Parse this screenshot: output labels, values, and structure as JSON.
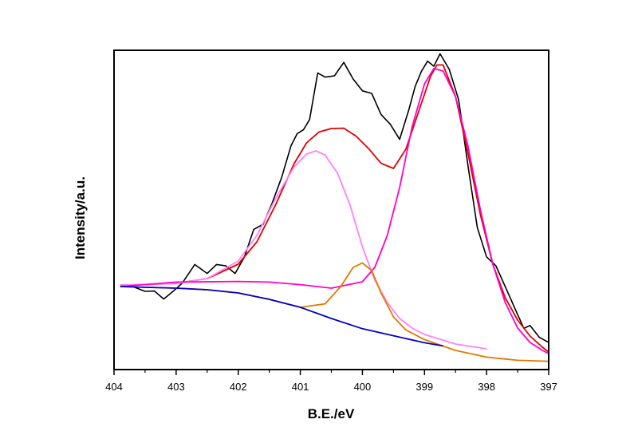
{
  "chart_data": {
    "type": "line",
    "title": "",
    "xlabel": "B.E./eV",
    "ylabel": "Intensity/a.u.",
    "xlim": [
      404,
      397
    ],
    "x_reversed": true,
    "ylim": [
      0,
      100
    ],
    "y_ticks_shown": false,
    "grid": false,
    "legend": "none",
    "x_ticks": [
      404,
      403,
      402,
      401,
      400,
      399,
      398,
      397
    ],
    "series": [
      {
        "color": "#000000",
        "style": "raw-data",
        "x": [
          403.9,
          403.7,
          403.5,
          403.35,
          403.2,
          403.05,
          402.9,
          402.7,
          402.5,
          402.35,
          402.2,
          402.05,
          401.9,
          401.75,
          401.6,
          401.45,
          401.3,
          401.15,
          401.05,
          400.95,
          400.85,
          400.72,
          400.6,
          400.45,
          400.3,
          400.15,
          400.0,
          399.85,
          399.7,
          399.55,
          399.4,
          399.25,
          399.15,
          399.05,
          398.95,
          398.85,
          398.75,
          398.6,
          398.45,
          398.3,
          398.15,
          398.0,
          397.85,
          397.7,
          397.55,
          397.4,
          397.3,
          397.15,
          397.0,
          396.9
        ],
        "y": [
          26.5,
          26,
          24.5,
          24.6,
          22.1,
          24.5,
          27.1,
          32.9,
          30.1,
          32.9,
          32.5,
          30.1,
          35.3,
          43.9,
          45.5,
          52.3,
          60.2,
          70.1,
          73.9,
          75.1,
          78.3,
          92.9,
          91.6,
          92.0,
          96.2,
          91.0,
          87.3,
          86.5,
          79.9,
          76.8,
          72.1,
          81.5,
          88.7,
          93.4,
          96.6,
          95.0,
          98.9,
          94.0,
          84.5,
          63.9,
          44.5,
          35.3,
          32.5,
          26.0,
          19.4,
          12.9,
          13.8,
          10.1,
          8.5,
          3.3
        ]
      },
      {
        "color": "#e00000",
        "style": "fitted-envelope",
        "x": [
          403.9,
          403.5,
          403.0,
          402.5,
          402.0,
          401.7,
          401.4,
          401.1,
          400.9,
          400.7,
          400.5,
          400.3,
          400.1,
          399.9,
          399.7,
          399.5,
          399.3,
          399.1,
          398.9,
          398.8,
          398.7,
          398.5,
          398.3,
          398.1,
          397.9,
          397.7,
          397.5,
          397.3,
          397.1,
          396.9
        ],
        "y": [
          26.5,
          26.6,
          27,
          28.5,
          33,
          40,
          51.5,
          64.5,
          71,
          74.4,
          75.5,
          75.6,
          73.1,
          69.2,
          64.6,
          63,
          69,
          80.5,
          92,
          95.4,
          95.4,
          85.5,
          67.7,
          48.5,
          33,
          22.5,
          15.5,
          10.5,
          7.0,
          4.0
        ]
      },
      {
        "color": "#ff80ff",
        "style": "component-peak",
        "x": [
          403.9,
          403.0,
          402.5,
          402.0,
          401.7,
          401.4,
          401.1,
          400.9,
          400.75,
          400.6,
          400.4,
          400.2,
          400.0,
          399.8,
          399.6,
          399.4,
          399.2,
          399.0,
          398.5,
          398.0
        ],
        "y": [
          26.5,
          26.9,
          28.5,
          34,
          42,
          53.5,
          63.5,
          67.5,
          68.5,
          67.2,
          61.5,
          51.5,
          38.5,
          28,
          21,
          16,
          13,
          11,
          8,
          6.5
        ]
      },
      {
        "color": "#ff00cc",
        "style": "component-peak",
        "x": [
          403.9,
          403.0,
          402.0,
          401.5,
          401.0,
          400.5,
          400.0,
          399.8,
          399.6,
          399.4,
          399.2,
          399.0,
          398.85,
          398.7,
          398.5,
          398.3,
          398.1,
          397.9,
          397.7,
          397.5,
          397.3,
          397.1,
          396.9
        ],
        "y": [
          26,
          27.4,
          27.6,
          27.4,
          26.6,
          25.5,
          27.5,
          32,
          42,
          57,
          76,
          89.5,
          94.3,
          93.5,
          85.5,
          70,
          50,
          33,
          21,
          13,
          8.5,
          6,
          4
        ]
      },
      {
        "color": "#e07a00",
        "style": "component-peak",
        "x": [
          403.9,
          403.0,
          402.5,
          402.0,
          401.5,
          401.0,
          400.6,
          400.35,
          400.15,
          400.0,
          399.85,
          399.7,
          399.5,
          399.3,
          399.0,
          398.5,
          398.0,
          397.5,
          397.0,
          396.9
        ],
        "y": [
          26,
          25.5,
          25,
          24,
          22,
          19.5,
          20.6,
          26,
          32,
          33.4,
          31,
          24,
          16.5,
          12.4,
          9.4,
          6.0,
          3.9,
          2.9,
          2.6,
          2.5
        ]
      },
      {
        "color": "#0000cc",
        "style": "baseline",
        "x": [
          403.9,
          403.0,
          402.5,
          402.0,
          401.5,
          401.0,
          400.5,
          400.0,
          399.5,
          399.0,
          398.7
        ],
        "y": [
          26,
          25.5,
          25,
          24,
          22,
          19.5,
          16,
          12.8,
          10.6,
          8.4,
          7.4
        ]
      }
    ]
  }
}
